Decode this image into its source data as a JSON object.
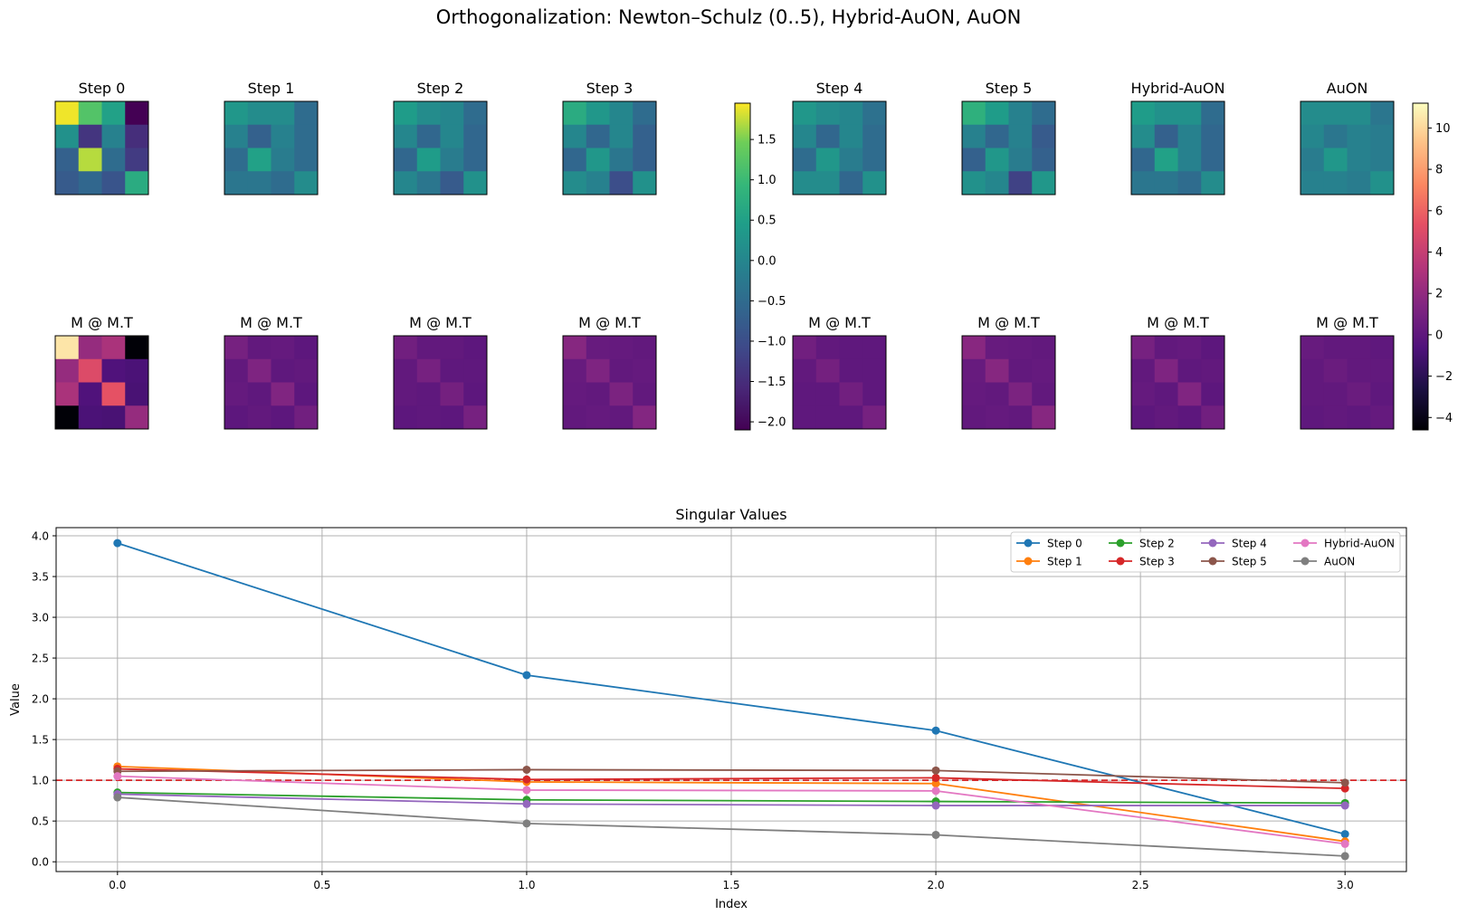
{
  "suptitle": "Orthogonalization: Newton–Schulz (0..5), Hybrid-AuON, AuON",
  "panels": [
    {
      "title": "Step 0",
      "mmt_title": "M @ M.T",
      "matrix": [
        [
          1.9,
          1.2,
          0.5,
          -2.1
        ],
        [
          0.2,
          -1.4,
          -0.1,
          -1.5
        ],
        [
          -0.7,
          1.7,
          -0.5,
          -1.3
        ],
        [
          -0.8,
          -0.6,
          -0.9,
          0.7
        ]
      ],
      "mmt": [
        [
          10.4,
          2.1,
          2.9,
          -4.5
        ],
        [
          2.1,
          4.9,
          -0.6,
          -0.8
        ],
        [
          2.9,
          -0.6,
          5.3,
          -0.9
        ],
        [
          -4.5,
          -0.8,
          -0.9,
          2.1
        ]
      ]
    },
    {
      "title": "Step 1",
      "mmt_title": "M @ M.T",
      "matrix": [
        [
          0.3,
          0.1,
          0.1,
          -0.5
        ],
        [
          -0.1,
          -0.7,
          -0.1,
          -0.5
        ],
        [
          -0.5,
          0.5,
          -0.2,
          -0.5
        ],
        [
          -0.3,
          -0.3,
          -0.5,
          0.1
        ]
      ],
      "mmt": [
        [
          0.9,
          0.1,
          0.2,
          -0.1
        ],
        [
          0.1,
          1.2,
          0.0,
          0.1
        ],
        [
          0.2,
          0.0,
          1.3,
          -0.1
        ],
        [
          -0.1,
          0.1,
          -0.1,
          0.7
        ]
      ]
    },
    {
      "title": "Step 2",
      "mmt_title": "M @ M.T",
      "matrix": [
        [
          0.4,
          0.1,
          0.0,
          -0.5
        ],
        [
          0.0,
          -0.6,
          0.0,
          -0.6
        ],
        [
          -0.6,
          0.4,
          -0.2,
          -0.6
        ],
        [
          0.0,
          -0.3,
          -0.8,
          0.2
        ]
      ],
      "mmt": [
        [
          0.7,
          0.1,
          0.1,
          -0.1
        ],
        [
          0.1,
          0.9,
          0.0,
          0.0
        ],
        [
          0.1,
          0.0,
          0.8,
          -0.1
        ],
        [
          -0.1,
          0.0,
          -0.1,
          0.9
        ]
      ]
    },
    {
      "title": "Step 3",
      "mmt_title": "M @ M.T",
      "matrix": [
        [
          0.7,
          0.3,
          0.0,
          -0.5
        ],
        [
          0.0,
          -0.6,
          0.0,
          -0.7
        ],
        [
          -0.6,
          0.3,
          -0.3,
          -0.7
        ],
        [
          0.1,
          -0.1,
          -1.0,
          0.2
        ]
      ],
      "mmt": [
        [
          1.5,
          0.3,
          0.2,
          0.1
        ],
        [
          0.3,
          1.2,
          0.1,
          0.2
        ],
        [
          0.2,
          0.1,
          1.1,
          0.1
        ],
        [
          0.1,
          0.2,
          0.1,
          1.4
        ]
      ]
    },
    {
      "title": "Step 4",
      "mmt_title": "M @ M.T",
      "matrix": [
        [
          0.3,
          0.1,
          0.0,
          -0.4
        ],
        [
          0.0,
          -0.6,
          0.0,
          -0.5
        ],
        [
          -0.5,
          0.3,
          -0.2,
          -0.5
        ],
        [
          0.1,
          0.1,
          -0.6,
          0.2
        ]
      ],
      "mmt": [
        [
          0.7,
          0.1,
          0.0,
          0.0
        ],
        [
          0.1,
          0.8,
          0.0,
          0.0
        ],
        [
          0.0,
          0.0,
          0.7,
          0.0
        ],
        [
          0.0,
          0.0,
          0.0,
          0.9
        ]
      ]
    },
    {
      "title": "Step 5",
      "mmt_title": "M @ M.T",
      "matrix": [
        [
          0.8,
          0.4,
          -0.1,
          -0.5
        ],
        [
          -0.1,
          -0.6,
          -0.1,
          -0.8
        ],
        [
          -0.7,
          0.3,
          -0.2,
          -0.7
        ],
        [
          0.2,
          0.0,
          -1.2,
          0.3
        ]
      ],
      "mmt": [
        [
          1.6,
          0.3,
          0.2,
          0.1
        ],
        [
          0.3,
          1.5,
          0.1,
          0.2
        ],
        [
          0.2,
          0.1,
          1.1,
          0.1
        ],
        [
          0.1,
          0.2,
          0.1,
          1.5
        ]
      ]
    },
    {
      "title": "Hybrid-AuON",
      "mmt_title": "M @ M.T",
      "matrix": [
        [
          0.4,
          0.2,
          0.2,
          -0.5
        ],
        [
          0.1,
          -0.7,
          -0.1,
          -0.6
        ],
        [
          -0.6,
          0.5,
          -0.1,
          -0.6
        ],
        [
          -0.3,
          -0.3,
          -0.5,
          0.1
        ]
      ],
      "mmt": [
        [
          0.9,
          0.1,
          0.2,
          -0.1
        ],
        [
          0.1,
          1.2,
          0.0,
          0.1
        ],
        [
          0.2,
          0.0,
          1.3,
          -0.1
        ],
        [
          -0.1,
          0.1,
          -0.1,
          0.7
        ]
      ]
    },
    {
      "title": "AuON",
      "mmt_title": "M @ M.T",
      "matrix": [
        [
          0.1,
          0.1,
          0.1,
          -0.3
        ],
        [
          0.0,
          -0.3,
          -0.1,
          -0.2
        ],
        [
          -0.2,
          0.3,
          -0.1,
          -0.2
        ],
        [
          -0.1,
          -0.1,
          -0.2,
          0.2
        ]
      ],
      "mmt": [
        [
          0.3,
          0.1,
          0.1,
          0.0
        ],
        [
          0.1,
          0.4,
          0.1,
          0.1
        ],
        [
          0.1,
          0.1,
          0.4,
          0.0
        ],
        [
          0.0,
          0.1,
          0.0,
          0.2
        ]
      ]
    }
  ],
  "colorbars": [
    {
      "name": "viridis",
      "min": -2.1,
      "max": 1.95,
      "ticks": [
        {
          "v": 1.5,
          "label": "1.5"
        },
        {
          "v": 1.0,
          "label": "1.0"
        },
        {
          "v": 0.5,
          "label": "0.5"
        },
        {
          "v": 0.0,
          "label": "0.0"
        },
        {
          "v": -0.5,
          "label": "−0.5"
        },
        {
          "v": -1.0,
          "label": "−1.0"
        },
        {
          "v": -1.5,
          "label": "−1.5"
        },
        {
          "v": -2.0,
          "label": "−2.0"
        }
      ]
    },
    {
      "name": "magma",
      "min": -4.6,
      "max": 11.2,
      "ticks": [
        {
          "v": 10,
          "label": "10"
        },
        {
          "v": 8,
          "label": "8"
        },
        {
          "v": 6,
          "label": "6"
        },
        {
          "v": 4,
          "label": "4"
        },
        {
          "v": 2,
          "label": "2"
        },
        {
          "v": 0,
          "label": "0"
        },
        {
          "v": -2,
          "label": "−2"
        },
        {
          "v": -4,
          "label": "−4"
        }
      ]
    }
  ],
  "chart_data": {
    "type": "line",
    "title": "Singular Values",
    "xlabel": "Index",
    "ylabel": "Value",
    "xlim": [
      -0.15,
      3.15
    ],
    "ylim": [
      -0.12,
      4.1
    ],
    "xticks": [
      {
        "v": 0,
        "label": "0.0"
      },
      {
        "v": 0.5,
        "label": "0.5"
      },
      {
        "v": 1.0,
        "label": "1.0"
      },
      {
        "v": 1.5,
        "label": "1.5"
      },
      {
        "v": 2.0,
        "label": "2.0"
      },
      {
        "v": 2.5,
        "label": "2.5"
      },
      {
        "v": 3.0,
        "label": "3.0"
      }
    ],
    "yticks": [
      {
        "v": 0,
        "label": "0.0"
      },
      {
        "v": 0.5,
        "label": "0.5"
      },
      {
        "v": 1.0,
        "label": "1.0"
      },
      {
        "v": 1.5,
        "label": "1.5"
      },
      {
        "v": 2.0,
        "label": "2.0"
      },
      {
        "v": 2.5,
        "label": "2.5"
      },
      {
        "v": 3.0,
        "label": "3.0"
      },
      {
        "v": 3.5,
        "label": "3.5"
      },
      {
        "v": 4.0,
        "label": "4.0"
      }
    ],
    "grid": true,
    "legend_position": "top-right",
    "reference_line": {
      "y": 1.0,
      "color": "#d62728",
      "style": "dashed"
    },
    "x": [
      0,
      1,
      2,
      3
    ],
    "series": [
      {
        "name": "Step 0",
        "color": "#1f77b4",
        "values": [
          3.91,
          2.29,
          1.61,
          0.34
        ]
      },
      {
        "name": "Step 1",
        "color": "#ff7f0e",
        "values": [
          1.17,
          0.98,
          0.96,
          0.25
        ]
      },
      {
        "name": "Step 2",
        "color": "#2ca02c",
        "values": [
          0.85,
          0.76,
          0.74,
          0.72
        ]
      },
      {
        "name": "Step 3",
        "color": "#d62728",
        "values": [
          1.14,
          1.01,
          1.03,
          0.9
        ]
      },
      {
        "name": "Step 4",
        "color": "#9467bd",
        "values": [
          0.83,
          0.71,
          0.69,
          0.69
        ]
      },
      {
        "name": "Step 5",
        "color": "#8c564b",
        "values": [
          1.11,
          1.13,
          1.12,
          0.97
        ]
      },
      {
        "name": "Hybrid-AuON",
        "color": "#e377c2",
        "values": [
          1.05,
          0.88,
          0.87,
          0.22
        ]
      },
      {
        "name": "AuON",
        "color": "#7f7f7f",
        "values": [
          0.79,
          0.47,
          0.33,
          0.07
        ]
      }
    ]
  }
}
